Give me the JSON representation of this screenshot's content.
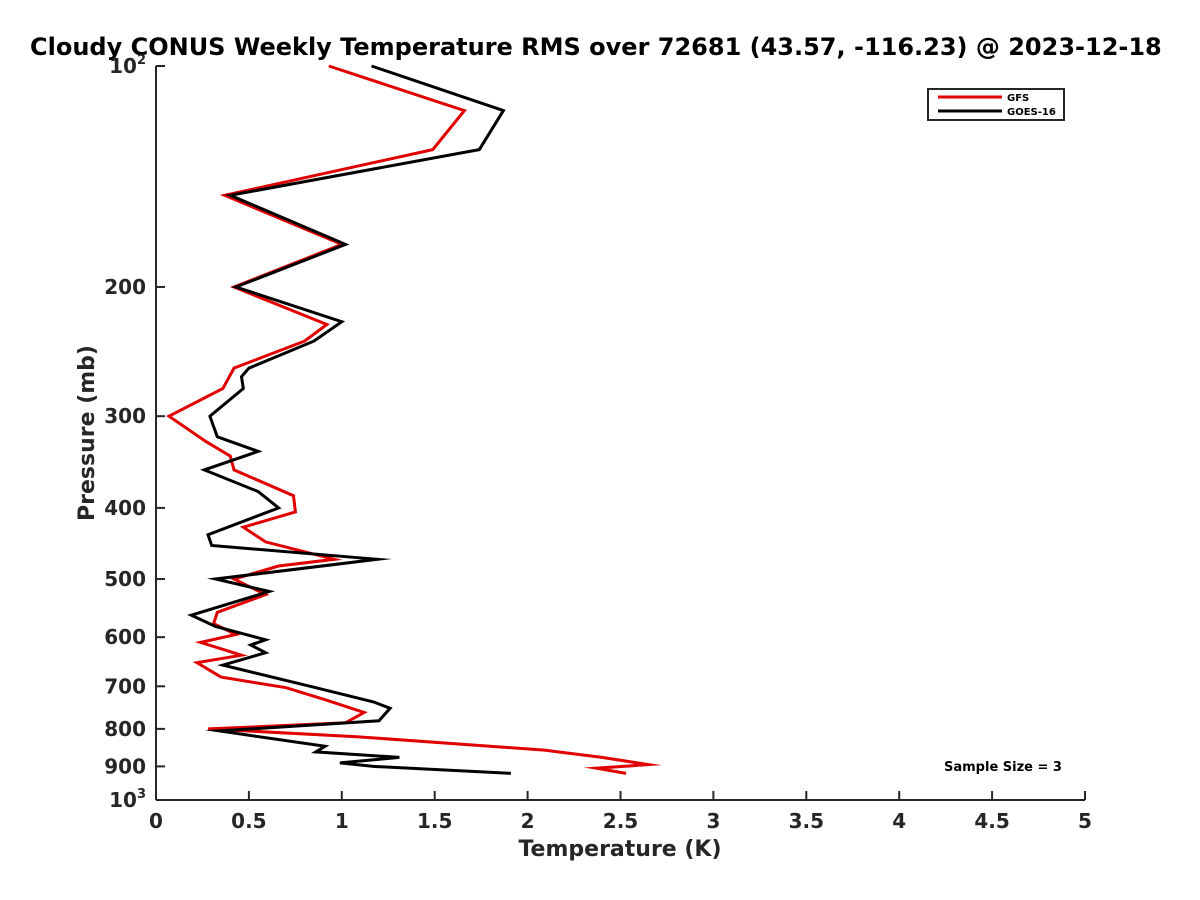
{
  "chart_data": {
    "type": "line",
    "title": "Cloudy CONUS Weekly Temperature RMS over 72681 (43.57, -116.23) @ 2023-12-18",
    "xlabel": "Temperature (K)",
    "ylabel": "Pressure (mb)",
    "xlim": [
      0,
      5
    ],
    "ylim": [
      100,
      1000
    ],
    "yscale": "log",
    "yaxis_reversed": true,
    "x_ticks": [
      0,
      0.5,
      1,
      1.5,
      2,
      2.5,
      3,
      3.5,
      4,
      4.5,
      5
    ],
    "x_tick_labels": [
      "0",
      "0.5",
      "1",
      "1.5",
      "2",
      "2.5",
      "3",
      "3.5",
      "4",
      "4.5",
      "5"
    ],
    "y_ticks": [
      100,
      200,
      300,
      400,
      500,
      600,
      700,
      800,
      900,
      1000
    ],
    "y_tick_labels": [
      {
        "base": "10",
        "exp": "2"
      },
      {
        "base": "200",
        "exp": ""
      },
      {
        "base": "300",
        "exp": ""
      },
      {
        "base": "400",
        "exp": ""
      },
      {
        "base": "500",
        "exp": ""
      },
      {
        "base": "600",
        "exp": ""
      },
      {
        "base": "700",
        "exp": ""
      },
      {
        "base": "800",
        "exp": ""
      },
      {
        "base": "900",
        "exp": ""
      },
      {
        "base": "10",
        "exp": "3"
      }
    ],
    "grid": false,
    "legend_position": "top-right",
    "series": [
      {
        "name": "GFS",
        "color": "#e00000",
        "points": [
          [
            0.93,
            100
          ],
          [
            1.66,
            115
          ],
          [
            1.49,
            130
          ],
          [
            0.37,
            150
          ],
          [
            1.0,
            175
          ],
          [
            0.42,
            200
          ],
          [
            0.92,
            225
          ],
          [
            0.8,
            237
          ],
          [
            0.42,
            258
          ],
          [
            0.36,
            275
          ],
          [
            0.07,
            300
          ],
          [
            0.27,
            325
          ],
          [
            0.4,
            340
          ],
          [
            0.42,
            355
          ],
          [
            0.74,
            385
          ],
          [
            0.75,
            405
          ],
          [
            0.47,
            425
          ],
          [
            0.59,
            445
          ],
          [
            0.96,
            470
          ],
          [
            0.66,
            480
          ],
          [
            0.42,
            500
          ],
          [
            0.59,
            525
          ],
          [
            0.33,
            555
          ],
          [
            0.31,
            575
          ],
          [
            0.43,
            595
          ],
          [
            0.24,
            610
          ],
          [
            0.46,
            635
          ],
          [
            0.22,
            650
          ],
          [
            0.35,
            680
          ],
          [
            0.7,
            703
          ],
          [
            0.91,
            730
          ],
          [
            1.12,
            760
          ],
          [
            1.02,
            785
          ],
          [
            0.28,
            800
          ],
          [
            1.08,
            820
          ],
          [
            2.09,
            855
          ],
          [
            2.4,
            875
          ],
          [
            2.65,
            895
          ],
          [
            2.37,
            905
          ],
          [
            2.53,
            920
          ]
        ]
      },
      {
        "name": "GOES-16",
        "color": "#000000",
        "points": [
          [
            1.16,
            100
          ],
          [
            1.87,
            115
          ],
          [
            1.74,
            130
          ],
          [
            0.4,
            150
          ],
          [
            1.02,
            175
          ],
          [
            0.43,
            200
          ],
          [
            1.0,
            223
          ],
          [
            0.85,
            237
          ],
          [
            0.5,
            258
          ],
          [
            0.46,
            265
          ],
          [
            0.47,
            275
          ],
          [
            0.29,
            300
          ],
          [
            0.33,
            320
          ],
          [
            0.55,
            335
          ],
          [
            0.26,
            355
          ],
          [
            0.55,
            380
          ],
          [
            0.66,
            400
          ],
          [
            0.28,
            435
          ],
          [
            0.3,
            450
          ],
          [
            1.19,
            470
          ],
          [
            0.32,
            500
          ],
          [
            0.61,
            520
          ],
          [
            0.19,
            560
          ],
          [
            0.32,
            580
          ],
          [
            0.59,
            605
          ],
          [
            0.51,
            615
          ],
          [
            0.59,
            630
          ],
          [
            0.36,
            655
          ],
          [
            0.83,
            700
          ],
          [
            1.17,
            735
          ],
          [
            1.26,
            750
          ],
          [
            1.2,
            780
          ],
          [
            0.34,
            805
          ],
          [
            0.91,
            845
          ],
          [
            0.86,
            860
          ],
          [
            1.31,
            875
          ],
          [
            0.99,
            890
          ],
          [
            1.17,
            900
          ],
          [
            1.91,
            920
          ]
        ]
      }
    ],
    "annotations": [
      "Sample Size = 3"
    ]
  }
}
